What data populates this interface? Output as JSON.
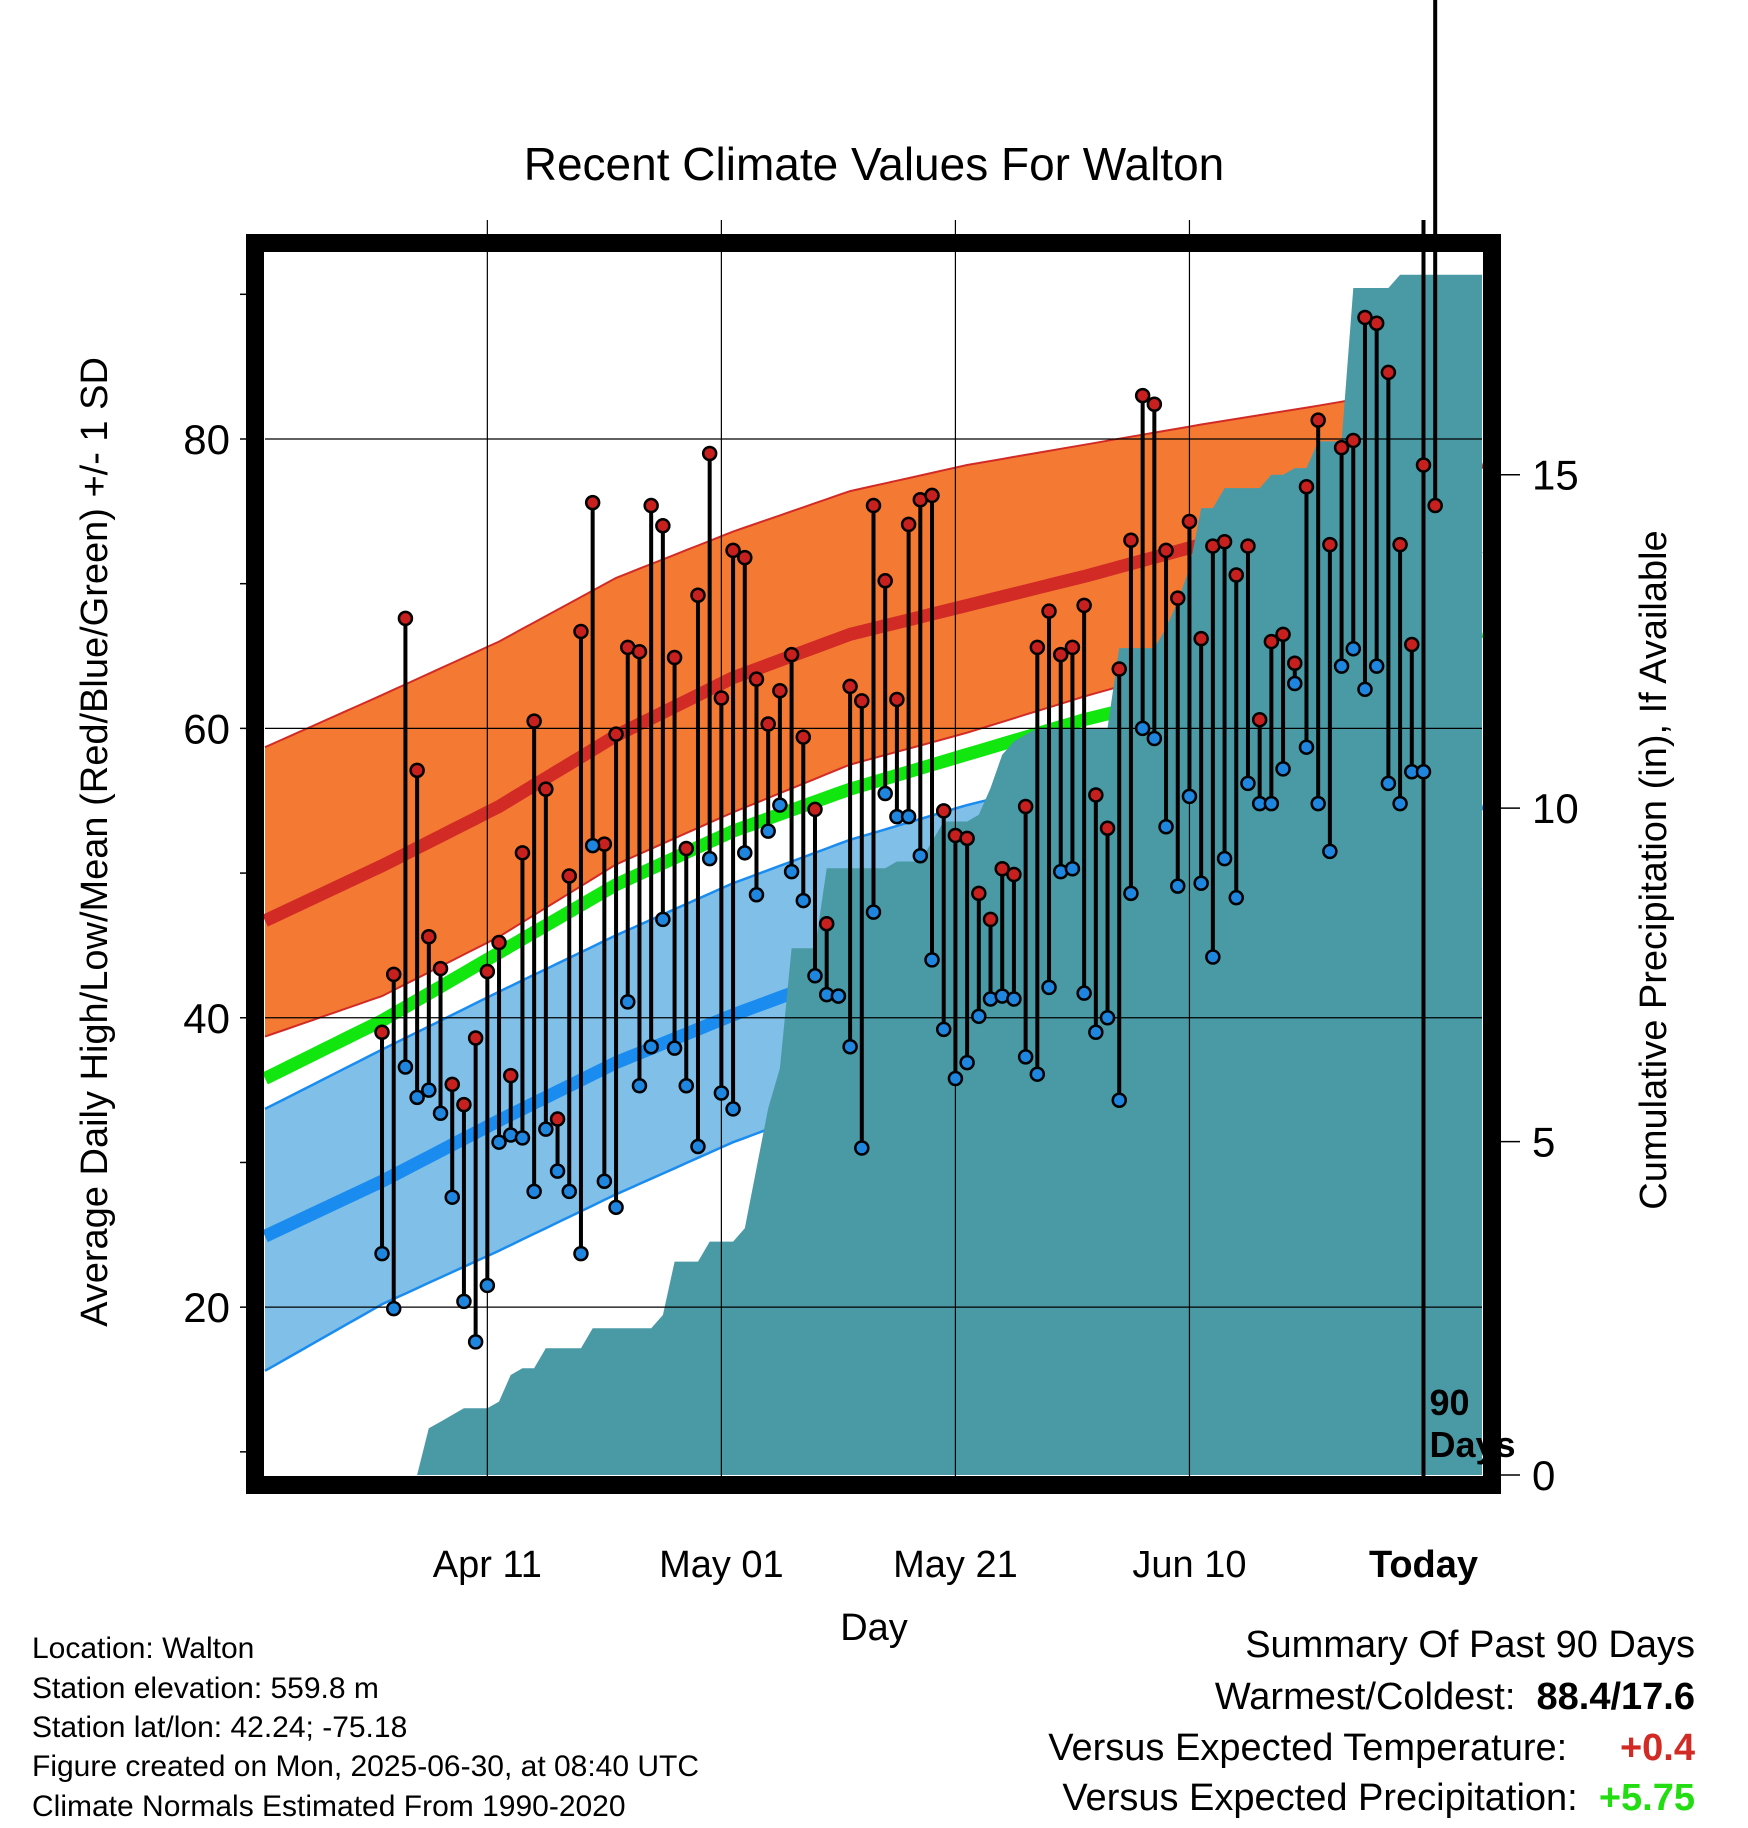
{
  "chart_data": {
    "type": "line",
    "title": "Recent Climate Values For Walton",
    "xlabel": "Day",
    "ylabel": "Average Daily High/Low/Mean (Red/Blue/Green) +/- 1 SD",
    "y2label": "Cumulative Precipitation (in), If Available",
    "x_ticks": [
      "Apr 11",
      "May 01",
      "May 21",
      "Jun 10",
      "Today"
    ],
    "y_ticks": [
      20,
      40,
      60,
      80
    ],
    "y2_ticks": [
      0,
      5,
      10,
      15
    ],
    "today_marker": "90\nDays",
    "today_marker_lines": [
      "90",
      "Days"
    ],
    "normals": {
      "normal_high": [
        [
          -10,
          46.7
        ],
        [
          0,
          50.5
        ],
        [
          10,
          54.6
        ],
        [
          20,
          59.5
        ],
        [
          30,
          63.5
        ],
        [
          40,
          66.5
        ],
        [
          50,
          68.5
        ],
        [
          60,
          70.5
        ],
        [
          70,
          72.7
        ],
        [
          80,
          75.2
        ],
        [
          90,
          77.4
        ],
        [
          94,
          78.4
        ]
      ],
      "high_sd_upper": [
        [
          -10,
          58.7
        ],
        [
          0,
          62.3
        ],
        [
          10,
          66.0
        ],
        [
          20,
          70.4
        ],
        [
          30,
          73.6
        ],
        [
          40,
          76.4
        ],
        [
          50,
          78.2
        ],
        [
          60,
          79.6
        ],
        [
          70,
          81.0
        ],
        [
          80,
          82.3
        ],
        [
          90,
          83.7
        ],
        [
          94,
          84.6
        ]
      ],
      "high_sd_lower": [
        [
          -10,
          38.7
        ],
        [
          0,
          41.5
        ],
        [
          10,
          45.6
        ],
        [
          20,
          50.6
        ],
        [
          30,
          54.2
        ],
        [
          40,
          57.5
        ],
        [
          50,
          59.7
        ],
        [
          60,
          62.2
        ],
        [
          70,
          64.5
        ],
        [
          80,
          67.4
        ],
        [
          90,
          70.0
        ],
        [
          94,
          72.2
        ]
      ],
      "normal_mean": [
        [
          -10,
          35.8
        ],
        [
          0,
          39.8
        ],
        [
          10,
          44.5
        ],
        [
          20,
          49.2
        ],
        [
          30,
          52.9
        ],
        [
          40,
          55.8
        ],
        [
          50,
          58.2
        ],
        [
          60,
          60.6
        ],
        [
          70,
          62.6
        ],
        [
          80,
          64.5
        ],
        [
          90,
          65.9
        ],
        [
          94,
          66.7
        ]
      ],
      "normal_low": [
        [
          -10,
          24.9
        ],
        [
          0,
          28.7
        ],
        [
          10,
          32.9
        ],
        [
          20,
          36.9
        ],
        [
          30,
          40.2
        ],
        [
          40,
          43.2
        ],
        [
          50,
          45.9
        ],
        [
          60,
          48.2
        ],
        [
          70,
          50.2
        ],
        [
          80,
          52.2
        ],
        [
          90,
          53.8
        ],
        [
          94,
          54.8
        ]
      ],
      "low_sd_upper": [
        [
          -10,
          33.7
        ],
        [
          0,
          37.8
        ],
        [
          10,
          41.8
        ],
        [
          20,
          45.7
        ],
        [
          30,
          49.3
        ],
        [
          40,
          52.3
        ],
        [
          50,
          54.7
        ],
        [
          60,
          56.7
        ],
        [
          70,
          58.1
        ],
        [
          80,
          59.6
        ],
        [
          90,
          60.5
        ],
        [
          94,
          61.0
        ]
      ],
      "low_sd_lower": [
        [
          -10,
          15.6
        ],
        [
          0,
          20.2
        ],
        [
          10,
          23.9
        ],
        [
          20,
          27.8
        ],
        [
          30,
          31.4
        ],
        [
          40,
          34.4
        ],
        [
          50,
          37.3
        ],
        [
          60,
          40.3
        ],
        [
          70,
          43.1
        ],
        [
          80,
          45.5
        ],
        [
          90,
          48.2
        ],
        [
          94,
          49.0
        ]
      ]
    },
    "series": [
      {
        "name": "High",
        "values": [
          39.0,
          43.0,
          67.6,
          57.1,
          45.6,
          43.4,
          35.4,
          34.0,
          38.6,
          43.2,
          45.2,
          36.0,
          51.4,
          60.5,
          55.8,
          33.0,
          49.8,
          66.7,
          75.6,
          52.0,
          59.6,
          65.6,
          65.3,
          75.4,
          74.0,
          64.9,
          51.7,
          69.2,
          79.0,
          62.1,
          72.3,
          71.8,
          63.4,
          60.3,
          62.6,
          65.1,
          59.4,
          54.4,
          46.5,
          41.5,
          62.9,
          61.9,
          75.4,
          70.2,
          62.0,
          74.1,
          75.8,
          76.1,
          54.3,
          52.6,
          52.4,
          48.6,
          46.8,
          50.3,
          49.9,
          54.6,
          65.6,
          68.1,
          65.1,
          65.6,
          68.5,
          55.4,
          53.1,
          64.1,
          73.0,
          83.0,
          82.4,
          72.3,
          69.0,
          74.3,
          66.2,
          72.6,
          72.9,
          70.6,
          72.6,
          60.6,
          66.0,
          66.5,
          64.5,
          76.7,
          81.3,
          72.7,
          79.4,
          79.9,
          88.4,
          88.0,
          84.6,
          72.7,
          65.8,
          78.2,
          75.4
        ]
      },
      {
        "name": "Low",
        "values": [
          23.7,
          19.9,
          36.6,
          34.5,
          35.0,
          33.4,
          27.6,
          20.4,
          17.6,
          21.5,
          31.4,
          31.9,
          31.7,
          28.0,
          32.3,
          29.4,
          28.0,
          23.7,
          51.9,
          28.7,
          26.9,
          41.1,
          35.3,
          38.0,
          46.8,
          37.9,
          35.3,
          31.1,
          51.0,
          34.8,
          33.7,
          51.4,
          48.5,
          52.9,
          54.7,
          50.1,
          48.1,
          42.9,
          41.6,
          41.5,
          38.0,
          31.0,
          47.3,
          55.5,
          53.9,
          53.9,
          51.2,
          44.0,
          39.2,
          35.8,
          36.9,
          40.1,
          41.3,
          41.5,
          41.3,
          37.3,
          36.1,
          42.1,
          50.1,
          50.3,
          41.7,
          39.0,
          40.0,
          34.3,
          48.6,
          60.0,
          59.3,
          53.2,
          49.1,
          55.3,
          49.3,
          44.2,
          51.0,
          48.3,
          56.2,
          54.8,
          54.8,
          57.2,
          63.1,
          58.7,
          54.8,
          51.5,
          64.3,
          65.5,
          62.7,
          64.3,
          56.2,
          54.8,
          57.0,
          57.0
        ]
      },
      {
        "name": "Cumulative Precipitation",
        "values": [
          0.0,
          0.0,
          0.0,
          0.0,
          0.7,
          0.8,
          0.9,
          1.0,
          1.0,
          1.0,
          1.1,
          1.5,
          1.6,
          1.6,
          1.9,
          1.9,
          1.9,
          1.9,
          2.2,
          2.2,
          2.2,
          2.2,
          2.2,
          2.2,
          2.4,
          3.2,
          3.2,
          3.2,
          3.5,
          3.5,
          3.5,
          3.7,
          4.6,
          5.5,
          6.1,
          7.9,
          7.9,
          7.9,
          9.1,
          9.1,
          9.1,
          9.1,
          9.1,
          9.1,
          9.2,
          9.2,
          9.2,
          9.5,
          9.8,
          9.8,
          9.8,
          9.9,
          10.3,
          10.8,
          11.0,
          11.1,
          11.2,
          11.2,
          11.2,
          11.2,
          11.2,
          11.2,
          11.2,
          12.4,
          12.4,
          12.4,
          12.4,
          12.7,
          13.1,
          13.6,
          14.5,
          14.5,
          14.8,
          14.8,
          14.8,
          14.8,
          15.0,
          15.0,
          15.1,
          15.1,
          15.5,
          15.5,
          15.5,
          17.8,
          17.8,
          17.8,
          17.8,
          18.0,
          18.0,
          18.0,
          18.0,
          18.0
        ]
      }
    ],
    "ylim": [
      8.4,
      93.2
    ],
    "y2lim": [
      0,
      18.4
    ],
    "xlim": [
      -10,
      94
    ]
  },
  "meta": {
    "location": "Location: Walton",
    "elevation": "Station elevation: 559.8 m",
    "latlon": "Station lat/lon: 42.24; -75.18",
    "created": "Figure created on Mon, 2025-06-30, at 08:40 UTC",
    "normals": "Climate Normals Estimated From 1990-2020"
  },
  "summary": {
    "title": "Summary Of Past 90 Days",
    "warm_cold_label": "Warmest/Coldest:",
    "warm_cold_value": "88.4/17.6",
    "temp_label": "Versus Expected Temperature:",
    "temp_value": "+0.4",
    "precip_label": "Versus Expected Precipitation:",
    "precip_value": "+5.75"
  },
  "colors": {
    "high_line": "#d22b26",
    "high_band": "#f47a34",
    "mean_line": "#11e60f",
    "low_line": "#1a8cf0",
    "low_band": "#80c0e8",
    "precip_fill": "#4a9aa6",
    "high_dot": "#c8201e",
    "low_dot": "#1f86e0",
    "temp_positive": "#d22b26",
    "precip_positive": "#22dd11"
  }
}
